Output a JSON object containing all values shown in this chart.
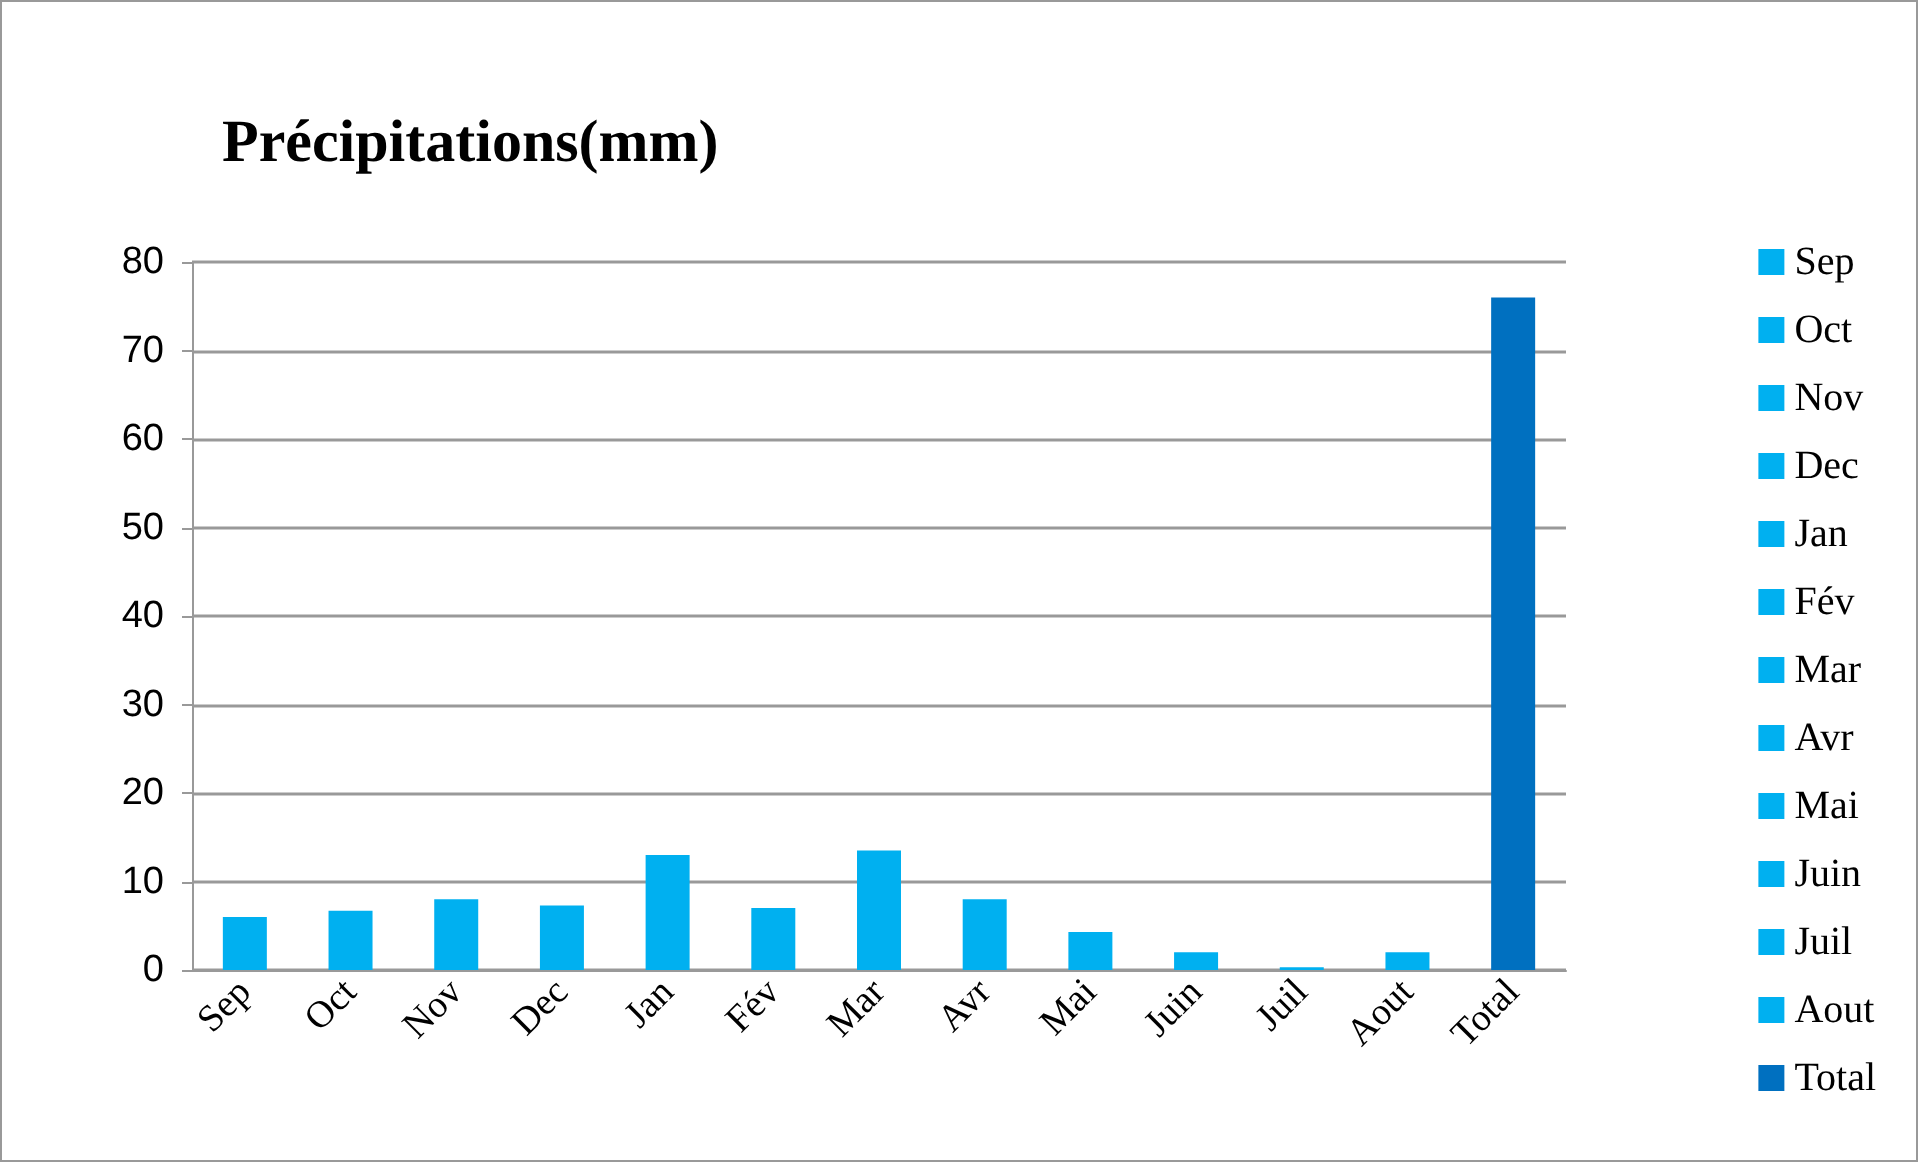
{
  "chart_data": {
    "type": "bar",
    "title": "Précipitations(mm)",
    "categories": [
      "Sep",
      "Oct",
      "Nov",
      "Dec",
      "Jan",
      "Fév",
      "Mar",
      "Avr",
      "Mai",
      "Juin",
      "Juil",
      "Aout",
      "Total"
    ],
    "stacked": true,
    "series": [
      {
        "name": "Sep",
        "color": "#00b0f0",
        "values": [
          6,
          null,
          null,
          null,
          null,
          null,
          null,
          null,
          null,
          null,
          null,
          null,
          null
        ]
      },
      {
        "name": "Oct",
        "color": "#00b0f0",
        "values": [
          null,
          6.7,
          null,
          null,
          null,
          null,
          null,
          null,
          null,
          null,
          null,
          null,
          null
        ]
      },
      {
        "name": "Nov",
        "color": "#00b0f0",
        "values": [
          null,
          null,
          8,
          null,
          null,
          null,
          null,
          null,
          null,
          null,
          null,
          null,
          null
        ]
      },
      {
        "name": "Dec",
        "color": "#00b0f0",
        "values": [
          null,
          null,
          null,
          7.3,
          null,
          null,
          null,
          null,
          null,
          null,
          null,
          null,
          null
        ]
      },
      {
        "name": "Jan",
        "color": "#00b0f0",
        "values": [
          null,
          null,
          null,
          null,
          13,
          null,
          null,
          null,
          null,
          null,
          null,
          null,
          null
        ]
      },
      {
        "name": "Fév",
        "color": "#00b0f0",
        "values": [
          null,
          null,
          null,
          null,
          null,
          7,
          null,
          null,
          null,
          null,
          null,
          null,
          null
        ]
      },
      {
        "name": "Mar",
        "color": "#00b0f0",
        "values": [
          null,
          null,
          null,
          null,
          null,
          null,
          13.5,
          null,
          null,
          null,
          null,
          null,
          null
        ]
      },
      {
        "name": "Avr",
        "color": "#00b0f0",
        "values": [
          null,
          null,
          null,
          null,
          null,
          null,
          null,
          8,
          null,
          null,
          null,
          null,
          null
        ]
      },
      {
        "name": "Mai",
        "color": "#00b0f0",
        "values": [
          null,
          null,
          null,
          null,
          null,
          null,
          null,
          null,
          4.3,
          null,
          null,
          null,
          null
        ]
      },
      {
        "name": "Juin",
        "color": "#00b0f0",
        "values": [
          null,
          null,
          null,
          null,
          null,
          null,
          null,
          null,
          null,
          2,
          null,
          null,
          null
        ]
      },
      {
        "name": "Juil",
        "color": "#00b0f0",
        "values": [
          null,
          null,
          null,
          null,
          null,
          null,
          null,
          null,
          null,
          null,
          0.3,
          null,
          null
        ]
      },
      {
        "name": "Aout",
        "color": "#00b0f0",
        "values": [
          null,
          null,
          null,
          null,
          null,
          null,
          null,
          null,
          null,
          null,
          null,
          2,
          null
        ]
      },
      {
        "name": "Total",
        "color": "#0070c0",
        "values": [
          null,
          null,
          null,
          null,
          null,
          null,
          null,
          null,
          null,
          null,
          null,
          null,
          76
        ]
      }
    ],
    "ylim": [
      0,
      80
    ],
    "yticks": [
      0,
      10,
      20,
      30,
      40,
      50,
      60,
      70,
      80
    ],
    "grid": "y",
    "legend": "right"
  }
}
